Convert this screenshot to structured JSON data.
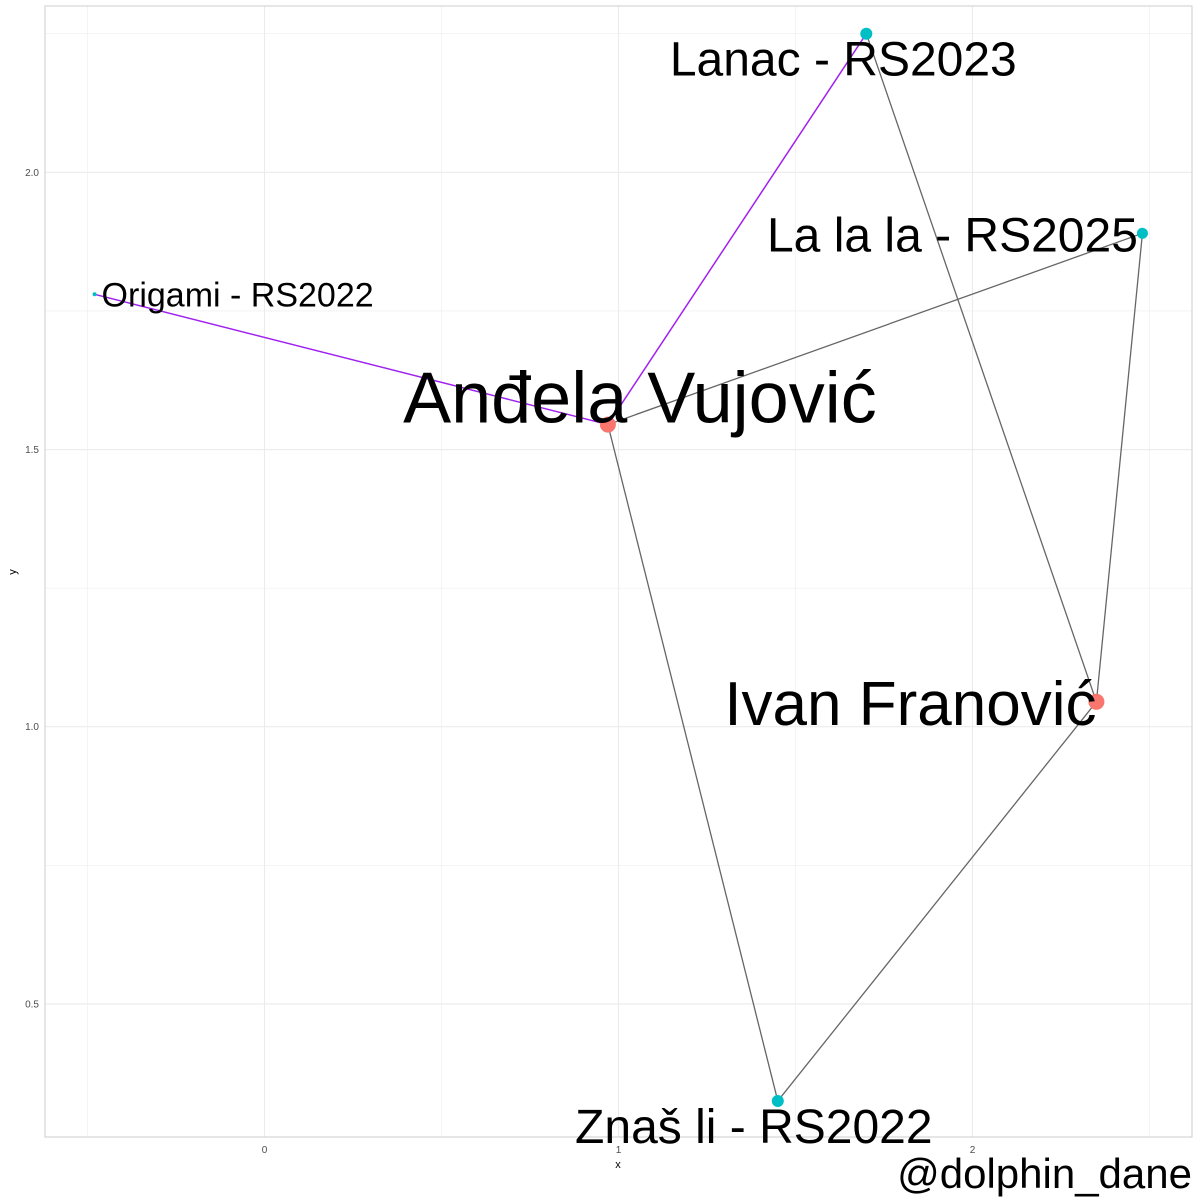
{
  "chart_data": {
    "type": "network",
    "xlabel": "x",
    "ylabel": "y",
    "xlim": [
      -0.62,
      2.62
    ],
    "ylim": [
      0.26,
      2.3
    ],
    "x_ticks": [
      0,
      1,
      2
    ],
    "y_ticks": [
      0.5,
      1.0,
      1.5,
      2.0
    ],
    "y_tick_labels": [
      "0.5",
      "1.0",
      "1.5",
      "2.0"
    ],
    "grid": true,
    "colors": {
      "person": "#F8766D",
      "song": "#00BFC4",
      "highlight_edge": "#A020F0",
      "edge": "#666666",
      "grid": "#EBEBEB",
      "panel_border": "#CCCCCC"
    },
    "nodes": [
      {
        "id": "andjela",
        "label": "Anđela Vujović",
        "kind": "person",
        "x": 0.97,
        "y": 1.545,
        "label_size": 72
      },
      {
        "id": "ivan",
        "label": "Ivan Franović",
        "kind": "person",
        "x": 2.35,
        "y": 1.045,
        "label_size": 62
      },
      {
        "id": "lanac",
        "label": "Lanac - RS2023",
        "kind": "song",
        "x": 1.7,
        "y": 2.25,
        "label_size": 48
      },
      {
        "id": "lalala",
        "label": "La la la - RS2025",
        "kind": "song",
        "x": 2.48,
        "y": 1.89,
        "label_size": 48
      },
      {
        "id": "origami",
        "label": "Origami - RS2022",
        "kind": "song",
        "x": -0.48,
        "y": 1.78,
        "label_size": 34
      },
      {
        "id": "znasli",
        "label": "Znaš li - RS2022",
        "kind": "song",
        "x": 1.45,
        "y": 0.325,
        "label_size": 48
      }
    ],
    "edges": [
      {
        "from": "andjela",
        "to": "origami",
        "highlight": true
      },
      {
        "from": "andjela",
        "to": "lanac",
        "highlight": true
      },
      {
        "from": "andjela",
        "to": "lalala",
        "highlight": false
      },
      {
        "from": "andjela",
        "to": "znasli",
        "highlight": false
      },
      {
        "from": "ivan",
        "to": "lanac",
        "highlight": false
      },
      {
        "from": "ivan",
        "to": "lalala",
        "highlight": false
      },
      {
        "from": "ivan",
        "to": "znasli",
        "highlight": false
      }
    ]
  },
  "caption": "@dolphin_dane"
}
